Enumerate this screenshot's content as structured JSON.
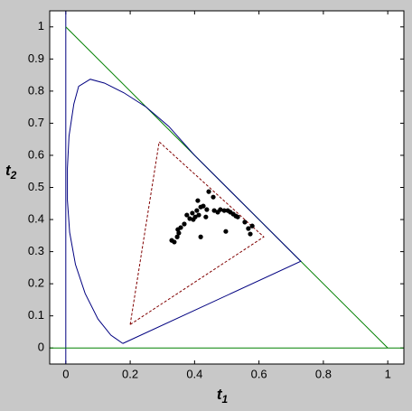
{
  "chart_data": {
    "type": "line",
    "xlabel": "t",
    "xlabel_sub": "1",
    "ylabel": "t",
    "ylabel_sub": "2",
    "xlim": [
      -0.05,
      1.05
    ],
    "ylim": [
      -0.05,
      1.05
    ],
    "xticks": [
      0,
      0.2,
      0.4,
      0.6,
      0.8,
      1
    ],
    "yticks": [
      0,
      0.1,
      0.2,
      0.3,
      0.4,
      0.5,
      0.6,
      0.7,
      0.8,
      0.9,
      1
    ],
    "series": [
      {
        "color": "#000080",
        "dash": false,
        "marker": false,
        "x": [
          0,
          0
        ],
        "values": [
          -0.05,
          1.05
        ]
      },
      {
        "color": "#008000",
        "dash": false,
        "marker": false,
        "x": [
          -0.05,
          1.05
        ],
        "values": [
          0,
          0
        ]
      },
      {
        "color": "#008000",
        "dash": false,
        "marker": false,
        "x": [
          0,
          1
        ],
        "values": [
          1,
          0
        ]
      },
      {
        "color": "#000080",
        "dash": false,
        "marker": false,
        "x": [
          0.177,
          0.14,
          0.1,
          0.06,
          0.03,
          0.012,
          0.005,
          0.005,
          0.01,
          0.025,
          0.04,
          0.076,
          0.12,
          0.18,
          0.25,
          0.32,
          0.4,
          0.5,
          0.6,
          0.7,
          0.73,
          0.177
        ],
        "values": [
          0.014,
          0.04,
          0.09,
          0.17,
          0.26,
          0.36,
          0.46,
          0.56,
          0.66,
          0.76,
          0.815,
          0.837,
          0.825,
          0.795,
          0.75,
          0.69,
          0.6,
          0.5,
          0.4,
          0.3,
          0.27,
          0.014
        ]
      },
      {
        "color": "#800000",
        "dash": true,
        "marker": false,
        "x": [
          0.2,
          0.29,
          0.615,
          0.2
        ],
        "values": [
          0.073,
          0.642,
          0.346,
          0.073
        ]
      },
      {
        "color": "#000000",
        "dash": false,
        "marker": true,
        "x": [
          0.329,
          0.337,
          0.346,
          0.351,
          0.348,
          0.357,
          0.368,
          0.376,
          0.385,
          0.393,
          0.396,
          0.402,
          0.407,
          0.41,
          0.413,
          0.419,
          0.427,
          0.435,
          0.438,
          0.444,
          0.458,
          0.461,
          0.472,
          0.48,
          0.492,
          0.503,
          0.511,
          0.52,
          0.528,
          0.534,
          0.556,
          0.567,
          0.573,
          0.579,
          0.497,
          0.419
        ],
        "values": [
          0.335,
          0.33,
          0.346,
          0.358,
          0.369,
          0.375,
          0.386,
          0.414,
          0.403,
          0.42,
          0.4,
          0.408,
          0.428,
          0.459,
          0.414,
          0.439,
          0.442,
          0.408,
          0.431,
          0.487,
          0.47,
          0.428,
          0.423,
          0.431,
          0.428,
          0.428,
          0.423,
          0.417,
          0.411,
          0.408,
          0.392,
          0.372,
          0.355,
          0.38,
          0.363,
          0.346
        ]
      }
    ]
  }
}
